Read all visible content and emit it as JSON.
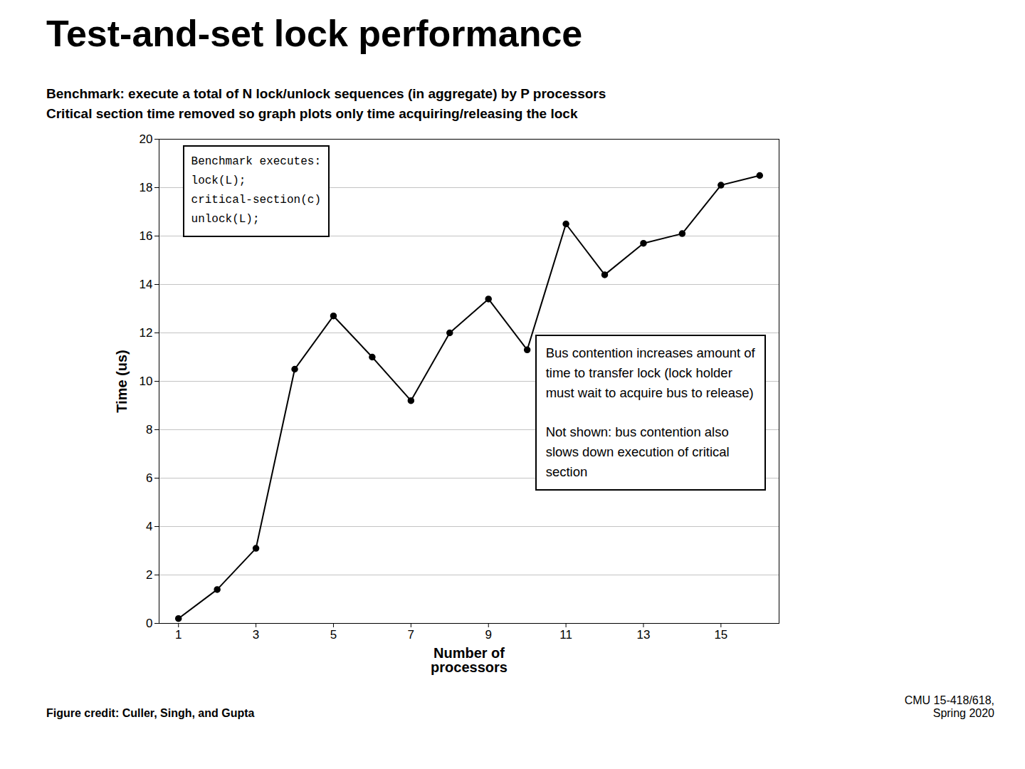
{
  "chart_data": {
    "type": "line",
    "title": "Test-and-set lock performance",
    "subtitles": [
      "Benchmark: execute a total of N lock/unlock sequences (in aggregate) by P processors",
      "Critical section time removed so graph plots only time acquiring/releasing the lock"
    ],
    "xlabel": "Number of\nprocessors",
    "ylabel": "Time (us)",
    "x": [
      1,
      2,
      3,
      4,
      5,
      6,
      7,
      8,
      9,
      10,
      11,
      12,
      13,
      14,
      15,
      16
    ],
    "values": [
      0.2,
      1.4,
      3.1,
      10.5,
      12.7,
      11.0,
      9.2,
      12.0,
      13.4,
      11.3,
      16.5,
      14.4,
      15.7,
      16.1,
      18.1,
      18.5
    ],
    "color": "#000000",
    "marker": "circle",
    "xlim": [
      0.5,
      16.5
    ],
    "ylim": [
      0,
      20
    ],
    "xticks": [
      1,
      3,
      5,
      7,
      9,
      11,
      13,
      15
    ],
    "yticks": [
      0,
      2,
      4,
      6,
      8,
      10,
      12,
      14,
      16,
      18,
      20
    ],
    "grid": "y",
    "annotations": [
      "Benchmark executes:\nlock(L);\ncritical-section(c)\nunlock(L);",
      "Bus contention increases amount of\ntime to transfer lock (lock holder\nmust wait to acquire bus to release)\n\nNot shown: bus contention also\nslows down execution of critical\nsection"
    ],
    "credits": [
      "Figure credit: Culler, Singh, and Gupta",
      "CMU 15-418/618,\nSpring 2020"
    ]
  }
}
